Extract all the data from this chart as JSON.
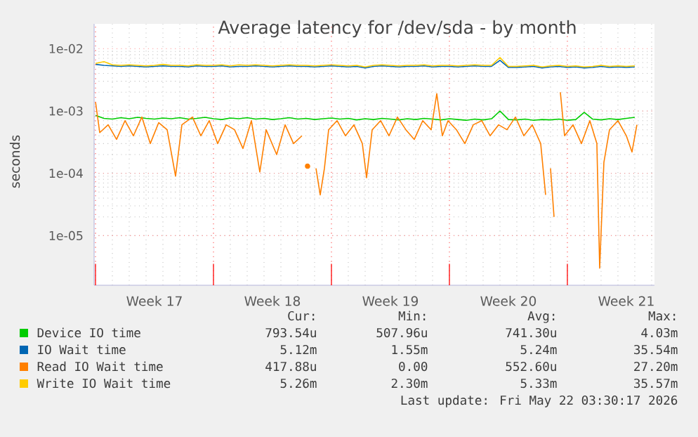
{
  "chart_data": {
    "type": "line",
    "title": "Average latency for /dev/sda - by month",
    "ylabel": "seconds",
    "log": "y",
    "grid": true,
    "legend": "bottom",
    "marker": "none",
    "line_style": "solid",
    "xlim": [
      "2026-04-19T22:00",
      "2026-05-23T04:00"
    ],
    "xticks": [
      {
        "value": "2026-04-20T00:00",
        "label": null
      },
      {
        "value": "2026-04-23T12:00",
        "label": "Week 17"
      },
      {
        "value": "2026-04-27T00:00",
        "label": null
      },
      {
        "value": "2026-04-30T12:00",
        "label": "Week 18"
      },
      {
        "value": "2026-05-04T00:00",
        "label": null
      },
      {
        "value": "2026-05-07T12:00",
        "label": "Week 19"
      },
      {
        "value": "2026-05-11T00:00",
        "label": null
      },
      {
        "value": "2026-05-14T12:00",
        "label": "Week 20"
      },
      {
        "value": "2026-05-18T00:00",
        "label": null
      },
      {
        "value": "2026-05-21T12:00",
        "label": "Week 21"
      }
    ],
    "ylim": [
      1.6e-06,
      0.025
    ],
    "yticks": [
      {
        "value": 1e-05,
        "label": "1e-05"
      },
      {
        "value": 0.0001,
        "label": "1e-04"
      },
      {
        "value": 0.001,
        "label": "1e-03"
      },
      {
        "value": 0.01,
        "label": "1e-02"
      }
    ],
    "x": [
      "2026-04-20T00:00",
      "2026-04-20T12:00",
      "2026-04-21T00:00",
      "2026-04-21T12:00",
      "2026-04-22T00:00",
      "2026-04-22T12:00",
      "2026-04-23T00:00",
      "2026-04-23T12:00",
      "2026-04-24T00:00",
      "2026-04-24T12:00",
      "2026-04-25T00:00",
      "2026-04-25T12:00",
      "2026-04-26T00:00",
      "2026-04-26T12:00",
      "2026-04-27T00:00",
      "2026-04-27T12:00",
      "2026-04-28T00:00",
      "2026-04-28T12:00",
      "2026-04-29T00:00",
      "2026-04-29T12:00",
      "2026-04-30T00:00",
      "2026-04-30T12:00",
      "2026-05-01T00:00",
      "2026-05-01T12:00",
      "2026-05-02T00:00",
      "2026-05-02T12:00",
      "2026-05-03T00:00",
      "2026-05-03T12:00",
      "2026-05-04T00:00",
      "2026-05-04T12:00",
      "2026-05-05T00:00",
      "2026-05-05T12:00",
      "2026-05-06T00:00",
      "2026-05-06T12:00",
      "2026-05-07T00:00",
      "2026-05-07T12:00",
      "2026-05-08T00:00",
      "2026-05-08T12:00",
      "2026-05-09T00:00",
      "2026-05-09T12:00",
      "2026-05-10T00:00",
      "2026-05-10T12:00",
      "2026-05-11T00:00",
      "2026-05-11T12:00",
      "2026-05-12T00:00",
      "2026-05-12T12:00",
      "2026-05-13T00:00",
      "2026-05-13T12:00",
      "2026-05-14T00:00",
      "2026-05-14T12:00",
      "2026-05-15T00:00",
      "2026-05-15T12:00",
      "2026-05-16T00:00",
      "2026-05-16T12:00",
      "2026-05-17T00:00",
      "2026-05-17T12:00",
      "2026-05-18T00:00",
      "2026-05-18T12:00",
      "2026-05-19T00:00",
      "2026-05-19T12:00",
      "2026-05-20T00:00",
      "2026-05-20T12:00",
      "2026-05-21T00:00",
      "2026-05-21T12:00",
      "2026-05-22T00:00"
    ],
    "series": [
      {
        "name": "Device IO time",
        "color": "#00cc00",
        "values": [
          0.00085,
          0.00076,
          0.00074,
          0.00078,
          0.00075,
          0.00079,
          0.00076,
          0.00074,
          0.00077,
          0.00075,
          0.00078,
          0.00074,
          0.00076,
          0.00079,
          0.00075,
          0.00073,
          0.00077,
          0.00075,
          0.00078,
          0.00074,
          0.00076,
          0.00073,
          0.00075,
          0.00078,
          0.00074,
          0.00076,
          0.00073,
          0.00075,
          0.00077,
          0.00074,
          0.00076,
          0.00072,
          0.00075,
          0.00073,
          0.00076,
          0.00074,
          0.00072,
          0.00075,
          0.00073,
          0.00076,
          0.00074,
          0.00072,
          0.00075,
          0.00073,
          0.00071,
          0.00074,
          0.00072,
          0.00075,
          0.001,
          0.00073,
          0.00072,
          0.00074,
          0.00071,
          0.00073,
          0.00072,
          0.00074,
          0.00071,
          0.00073,
          0.00095,
          0.00074,
          0.00072,
          0.00075,
          0.00073,
          0.00076,
          0.00079
        ]
      },
      {
        "name": "IO Wait time",
        "color": "#0066b3",
        "values": [
          0.0056,
          0.0054,
          0.0053,
          0.0052,
          0.0053,
          0.0052,
          0.0051,
          0.0052,
          0.0053,
          0.0052,
          0.0052,
          0.0051,
          0.0053,
          0.0052,
          0.0052,
          0.0053,
          0.0051,
          0.0052,
          0.0052,
          0.0053,
          0.0052,
          0.0051,
          0.0052,
          0.0053,
          0.0052,
          0.0052,
          0.0051,
          0.0052,
          0.0053,
          0.0052,
          0.0051,
          0.0052,
          0.0049,
          0.0052,
          0.0053,
          0.0052,
          0.0051,
          0.0052,
          0.0052,
          0.0053,
          0.0051,
          0.0052,
          0.0052,
          0.0051,
          0.0052,
          0.0053,
          0.0052,
          0.0052,
          0.0065,
          0.005,
          0.005,
          0.0051,
          0.0052,
          0.0049,
          0.0051,
          0.0052,
          0.005,
          0.0051,
          0.0049,
          0.005,
          0.0052,
          0.005,
          0.0051,
          0.005,
          0.0051
        ]
      },
      {
        "name": "Read IO Wait time",
        "color": "#ff8000",
        "x": [
          "2026-04-20T00:00",
          "2026-04-20T06:00",
          "2026-04-20T18:00",
          "2026-04-21T06:00",
          "2026-04-21T18:00",
          "2026-04-22T06:00",
          "2026-04-22T18:00",
          "2026-04-23T06:00",
          "2026-04-23T18:00",
          "2026-04-24T06:00",
          "2026-04-24T18:00",
          "2026-04-25T03:00",
          "2026-04-25T18:00",
          "2026-04-26T06:00",
          "2026-04-26T18:00",
          "2026-04-27T06:00",
          "2026-04-27T18:00",
          "2026-04-28T06:00",
          "2026-04-28T18:00",
          "2026-04-29T06:00",
          "2026-04-29T18:00",
          "2026-04-30T03:00",
          "2026-04-30T18:00",
          "2026-05-01T06:00",
          "2026-05-01T18:00",
          "2026-05-02T06:00",
          "2026-05-02T10:00",
          "2026-05-02T14:00",
          "2026-05-02T20:00",
          "2026-05-03T02:00",
          "2026-05-03T08:00",
          "2026-05-03T14:00",
          "2026-05-03T20:00",
          "2026-05-04T08:00",
          "2026-05-04T20:00",
          "2026-05-05T08:00",
          "2026-05-05T20:00",
          "2026-05-06T02:00",
          "2026-05-06T10:00",
          "2026-05-06T22:00",
          "2026-05-07T10:00",
          "2026-05-07T22:00",
          "2026-05-08T10:00",
          "2026-05-08T22:00",
          "2026-05-09T10:00",
          "2026-05-09T22:00",
          "2026-05-10T06:00",
          "2026-05-10T14:00",
          "2026-05-10T22:00",
          "2026-05-11T10:00",
          "2026-05-11T22:00",
          "2026-05-12T10:00",
          "2026-05-12T22:00",
          "2026-05-13T10:00",
          "2026-05-13T22:00",
          "2026-05-14T10:00",
          "2026-05-14T22:00",
          "2026-05-15T10:00",
          "2026-05-15T22:00",
          "2026-05-16T10:00",
          "2026-05-16T17:00",
          "2026-05-16T20:00",
          "2026-05-17T00:00",
          "2026-05-17T05:00",
          "2026-05-17T10:00",
          "2026-05-17T14:00",
          "2026-05-17T20:00",
          "2026-05-18T08:00",
          "2026-05-18T20:00",
          "2026-05-19T08:00",
          "2026-05-19T18:00",
          "2026-05-19T22:00",
          "2026-05-20T04:00",
          "2026-05-20T12:00",
          "2026-05-21T00:00",
          "2026-05-21T12:00",
          "2026-05-21T20:00",
          "2026-05-22T03:00"
        ],
        "values": [
          0.0014,
          0.00045,
          0.0006,
          0.00035,
          0.0007,
          0.0004,
          0.0008,
          0.0003,
          0.00065,
          0.0005,
          9e-05,
          0.0006,
          0.0008,
          0.0004,
          0.0007,
          0.0003,
          0.0006,
          0.0005,
          0.00025,
          0.0007,
          0.000105,
          0.0005,
          0.0002,
          0.0006,
          0.0003,
          0.0004,
          null,
          0.00013,
          null,
          0.00012,
          4.5e-05,
          0.00012,
          0.0005,
          0.0007,
          0.0004,
          0.0006,
          0.0003,
          8.5e-05,
          0.0005,
          0.0007,
          0.0004,
          0.0008,
          0.0005,
          0.00035,
          0.0007,
          0.0005,
          0.0019,
          0.0004,
          0.0007,
          0.0005,
          0.0003,
          0.0006,
          0.0007,
          0.0004,
          0.0006,
          0.0005,
          0.0008,
          0.0004,
          0.0006,
          0.0003,
          4.5e-05,
          null,
          0.00012,
          2e-05,
          null,
          0.002,
          0.0004,
          0.0006,
          0.0003,
          0.0007,
          0.0003,
          3e-06,
          0.00015,
          0.0005,
          0.0007,
          0.0004,
          0.00022,
          0.0006
        ]
      },
      {
        "name": "Write IO Wait time",
        "color": "#ffcc00",
        "values": [
          0.0058,
          0.0062,
          0.0055,
          0.0054,
          0.0055,
          0.0054,
          0.0053,
          0.0054,
          0.0056,
          0.0054,
          0.0054,
          0.0053,
          0.0055,
          0.0054,
          0.0054,
          0.0055,
          0.0053,
          0.0055,
          0.0054,
          0.0055,
          0.0054,
          0.0053,
          0.0054,
          0.0055,
          0.0054,
          0.0054,
          0.0053,
          0.0054,
          0.0055,
          0.0054,
          0.0053,
          0.0054,
          0.0051,
          0.0054,
          0.0055,
          0.0054,
          0.0053,
          0.0054,
          0.0054,
          0.0055,
          0.0053,
          0.0054,
          0.0054,
          0.0053,
          0.0054,
          0.0055,
          0.0054,
          0.0054,
          0.0072,
          0.0052,
          0.0052,
          0.0053,
          0.0054,
          0.0051,
          0.0053,
          0.0054,
          0.0052,
          0.0053,
          0.0051,
          0.0052,
          0.0054,
          0.0052,
          0.0053,
          0.0052,
          0.0053
        ]
      }
    ],
    "annotations": [
      "Cur:",
      "Min:",
      "Avg:",
      "Max:",
      "793.54u",
      "507.96u",
      "741.30u",
      "4.03m",
      "5.12m",
      "1.55m",
      "5.24m",
      "35.54m",
      "417.88u",
      "0.00",
      "552.60u",
      "27.20m",
      "5.26m",
      "2.30m",
      "5.33m",
      "35.57m",
      "Last update: Fri May 22 03:30:17 2026"
    ]
  }
}
